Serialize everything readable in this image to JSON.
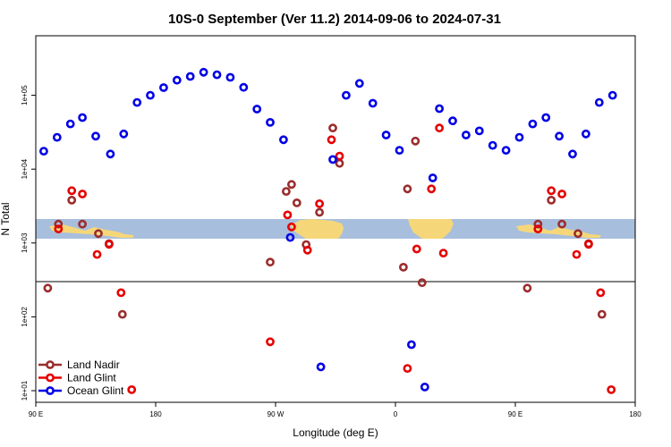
{
  "chart_data": {
    "type": "scatter",
    "title": "10S-0 September (Ver 11.2)   2014-09-06 to 2024-07-31",
    "xlabel": "Longitude (deg E)",
    "ylabel": "N Total",
    "x_scale": "linear",
    "y_scale": "log",
    "xlim": [
      90,
      540
    ],
    "ylim": [
      8.5,
      400000
    ],
    "x_ticks": [
      {
        "value": 90,
        "label": "90 E"
      },
      {
        "value": 180,
        "label": "180"
      },
      {
        "value": 270,
        "label": "90 W"
      },
      {
        "value": 360,
        "label": "0"
      },
      {
        "value": 450,
        "label": "90 E"
      },
      {
        "value": 540,
        "label": "180"
      }
    ],
    "y_ticks": [
      {
        "value": 10,
        "label": "1e+01"
      },
      {
        "value": 100,
        "label": "1e+02"
      },
      {
        "value": 1000,
        "label": "1e+03"
      },
      {
        "value": 10000,
        "label": "1e+04"
      },
      {
        "value": 100000,
        "label": "1e+05"
      }
    ],
    "legend_position": "bottom-left",
    "inset": "world map strip (10S-0 latitude band)",
    "series": [
      {
        "name": "Land Nadir",
        "color": "#9b2d2d",
        "points": [
          {
            "x": 99,
            "y": 245
          },
          {
            "x": 107,
            "y": 1800
          },
          {
            "x": 117,
            "y": 3800
          },
          {
            "x": 125,
            "y": 1800
          },
          {
            "x": 137,
            "y": 1340
          },
          {
            "x": 145,
            "y": 980
          },
          {
            "x": 155,
            "y": 108
          },
          {
            "x": 266,
            "y": 550
          },
          {
            "x": 278,
            "y": 5000
          },
          {
            "x": 282,
            "y": 6200
          },
          {
            "x": 286,
            "y": 3500
          },
          {
            "x": 293,
            "y": 950
          },
          {
            "x": 303,
            "y": 2600
          },
          {
            "x": 313,
            "y": 36000
          },
          {
            "x": 318,
            "y": 12000
          },
          {
            "x": 366,
            "y": 470
          },
          {
            "x": 369,
            "y": 5400
          },
          {
            "x": 375,
            "y": 24000
          },
          {
            "x": 380,
            "y": 290
          },
          {
            "x": 459,
            "y": 245
          },
          {
            "x": 467,
            "y": 1800
          },
          {
            "x": 477,
            "y": 3800
          },
          {
            "x": 485,
            "y": 1800
          },
          {
            "x": 497,
            "y": 1340
          },
          {
            "x": 505,
            "y": 980
          },
          {
            "x": 515,
            "y": 108
          }
        ]
      },
      {
        "name": "Land Glint",
        "color": "#e60000",
        "points": [
          {
            "x": 107,
            "y": 1550
          },
          {
            "x": 117,
            "y": 5100
          },
          {
            "x": 125,
            "y": 4600
          },
          {
            "x": 136,
            "y": 700
          },
          {
            "x": 145,
            "y": 960
          },
          {
            "x": 154,
            "y": 212
          },
          {
            "x": 162,
            "y": 10.3
          },
          {
            "x": 266,
            "y": 46
          },
          {
            "x": 279,
            "y": 2400
          },
          {
            "x": 282,
            "y": 1650
          },
          {
            "x": 294,
            "y": 800
          },
          {
            "x": 303,
            "y": 3400
          },
          {
            "x": 312,
            "y": 25000
          },
          {
            "x": 318,
            "y": 15000
          },
          {
            "x": 369,
            "y": 20
          },
          {
            "x": 376,
            "y": 830
          },
          {
            "x": 387,
            "y": 5400
          },
          {
            "x": 393,
            "y": 36000
          },
          {
            "x": 396,
            "y": 730
          },
          {
            "x": 467,
            "y": 1550
          },
          {
            "x": 477,
            "y": 5100
          },
          {
            "x": 485,
            "y": 4600
          },
          {
            "x": 496,
            "y": 700
          },
          {
            "x": 505,
            "y": 960
          },
          {
            "x": 514,
            "y": 212
          },
          {
            "x": 522,
            "y": 10.3
          }
        ]
      },
      {
        "name": "Ocean Glint",
        "color": "#0000e6",
        "points": [
          {
            "x": 96,
            "y": 17500
          },
          {
            "x": 106,
            "y": 27000
          },
          {
            "x": 116,
            "y": 41000
          },
          {
            "x": 125,
            "y": 50000
          },
          {
            "x": 135,
            "y": 28000
          },
          {
            "x": 146,
            "y": 16000
          },
          {
            "x": 156,
            "y": 30000
          },
          {
            "x": 166,
            "y": 80000
          },
          {
            "x": 176,
            "y": 100000
          },
          {
            "x": 186,
            "y": 127000
          },
          {
            "x": 196,
            "y": 160000
          },
          {
            "x": 206,
            "y": 180000
          },
          {
            "x": 216,
            "y": 205000
          },
          {
            "x": 226,
            "y": 190000
          },
          {
            "x": 236,
            "y": 175000
          },
          {
            "x": 246,
            "y": 128000
          },
          {
            "x": 256,
            "y": 65000
          },
          {
            "x": 266,
            "y": 43000
          },
          {
            "x": 276,
            "y": 25000
          },
          {
            "x": 281,
            "y": 1190
          },
          {
            "x": 304,
            "y": 21
          },
          {
            "x": 313,
            "y": 13500
          },
          {
            "x": 323,
            "y": 100000
          },
          {
            "x": 333,
            "y": 145000
          },
          {
            "x": 343,
            "y": 78000
          },
          {
            "x": 353,
            "y": 29000
          },
          {
            "x": 363,
            "y": 18000
          },
          {
            "x": 372,
            "y": 42
          },
          {
            "x": 388,
            "y": 7600
          },
          {
            "x": 382,
            "y": 11.2
          },
          {
            "x": 393,
            "y": 66000
          },
          {
            "x": 403,
            "y": 45000
          },
          {
            "x": 413,
            "y": 29000
          },
          {
            "x": 423,
            "y": 33000
          },
          {
            "x": 433,
            "y": 21000
          },
          {
            "x": 443,
            "y": 18000
          },
          {
            "x": 453,
            "y": 27000
          },
          {
            "x": 463,
            "y": 41000
          },
          {
            "x": 473,
            "y": 50000
          },
          {
            "x": 483,
            "y": 28000
          },
          {
            "x": 493,
            "y": 16000
          },
          {
            "x": 503,
            "y": 30000
          },
          {
            "x": 513,
            "y": 80000
          },
          {
            "x": 523,
            "y": 100000
          }
        ]
      }
    ]
  }
}
